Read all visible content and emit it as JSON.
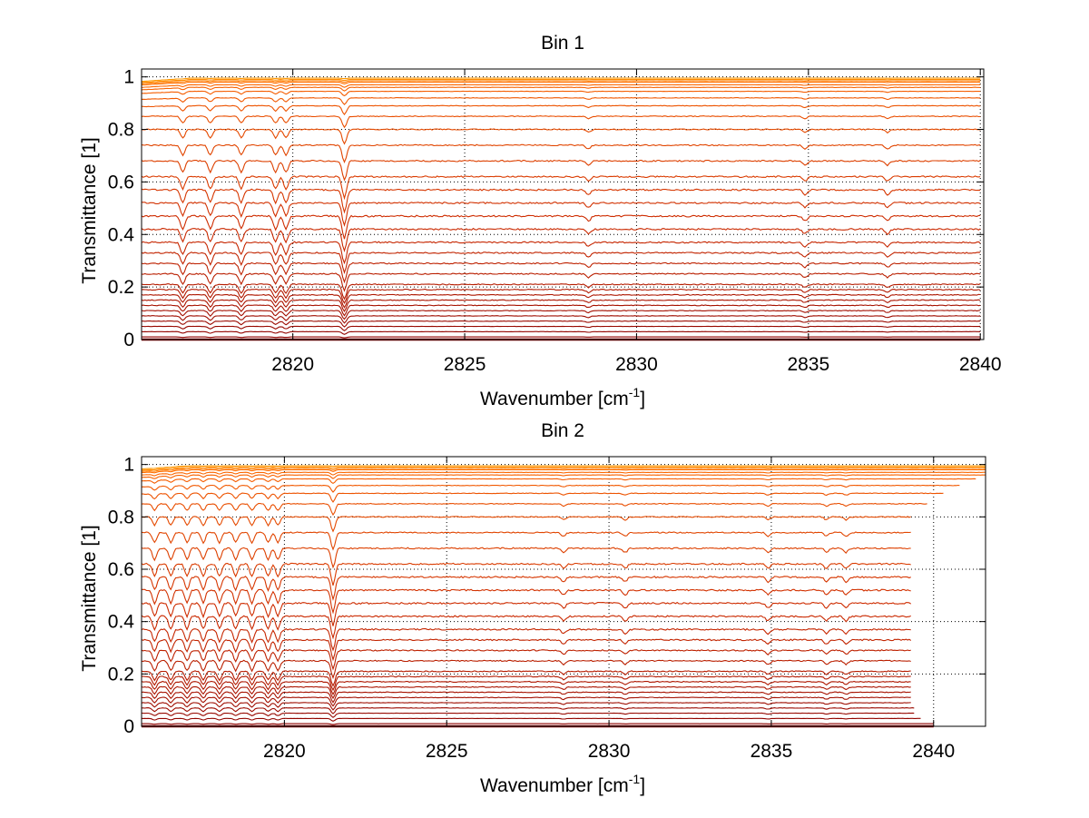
{
  "chart_data": [
    {
      "type": "line",
      "title": "Bin 1",
      "xlabel": "Wavenumber [cm",
      "xlabel_sup": "-1",
      "xlabel_end": "]",
      "ylabel": "Transmittance [1]",
      "xlim": [
        2815.6,
        2840.1
      ],
      "ylim": [
        0,
        1.03
      ],
      "xticks": [
        2820,
        2825,
        2830,
        2835,
        2840
      ],
      "xtick_labels": [
        "2820",
        "2825",
        "2830",
        "2835",
        "2840"
      ],
      "yticks": [
        0,
        0.2,
        0.4,
        0.6,
        0.8,
        1
      ],
      "ytick_labels": [
        "0",
        "0.2",
        "0.4",
        "0.6",
        "0.8",
        "1"
      ],
      "grid": "dotted",
      "series_count": 34,
      "series_baselines": [
        0.0,
        0.01,
        0.03,
        0.05,
        0.07,
        0.09,
        0.11,
        0.13,
        0.15,
        0.17,
        0.19,
        0.21,
        0.25,
        0.29,
        0.33,
        0.37,
        0.42,
        0.47,
        0.52,
        0.57,
        0.62,
        0.68,
        0.74,
        0.8,
        0.85,
        0.89,
        0.92,
        0.945,
        0.96,
        0.97,
        0.98,
        0.985,
        0.99,
        0.995
      ],
      "series_x_end": 2840.0,
      "absorption_lines": [
        2816.8,
        2817.6,
        2818.5,
        2819.5,
        2819.8,
        2821.5,
        2828.6,
        2834.9,
        2837.3
      ]
    },
    {
      "type": "line",
      "title": "Bin 2",
      "xlabel": "Wavenumber [cm",
      "xlabel_sup": "-1",
      "xlabel_end": "]",
      "ylabel": "Transmittance [1]",
      "xlim": [
        2815.6,
        2841.6
      ],
      "ylim": [
        0,
        1.03
      ],
      "xticks": [
        2820,
        2825,
        2830,
        2835,
        2840
      ],
      "xtick_labels": [
        "2820",
        "2825",
        "2830",
        "2835",
        "2840"
      ],
      "yticks": [
        0,
        0.2,
        0.4,
        0.6,
        0.8,
        1
      ],
      "ytick_labels": [
        "0",
        "0.2",
        "0.4",
        "0.6",
        "0.8",
        "1"
      ],
      "grid": "dotted",
      "series_count": 34,
      "series_baselines": [
        0.0,
        0.01,
        0.03,
        0.05,
        0.07,
        0.09,
        0.11,
        0.13,
        0.15,
        0.17,
        0.19,
        0.21,
        0.25,
        0.29,
        0.33,
        0.37,
        0.42,
        0.47,
        0.52,
        0.57,
        0.62,
        0.68,
        0.74,
        0.8,
        0.85,
        0.89,
        0.92,
        0.945,
        0.96,
        0.97,
        0.98,
        0.985,
        0.99,
        0.995
      ],
      "series_x_end": [
        2840.0,
        2840.0,
        2839.6,
        2839.4,
        2839.4,
        2839.3,
        2839.3,
        2839.3,
        2839.3,
        2839.3,
        2839.3,
        2839.3,
        2839.3,
        2839.3,
        2839.3,
        2839.3,
        2839.3,
        2839.3,
        2839.3,
        2839.3,
        2839.3,
        2839.3,
        2839.3,
        2839.3,
        2839.8,
        2840.3,
        2840.8,
        2841.3,
        2841.6,
        2841.6,
        2841.6,
        2841.6,
        2841.6,
        2841.6
      ],
      "absorption_lines": [
        2816.0,
        2816.5,
        2817.0,
        2817.5,
        2818.0,
        2818.5,
        2819.0,
        2819.5,
        2819.8,
        2821.5,
        2828.6,
        2830.5,
        2834.9,
        2836.7,
        2837.3
      ]
    }
  ],
  "colors": {
    "low": "#8b0000",
    "mid": "#cc2a00",
    "high": "#ff6a00",
    "top": "#ff9900",
    "grid": "#000000"
  }
}
